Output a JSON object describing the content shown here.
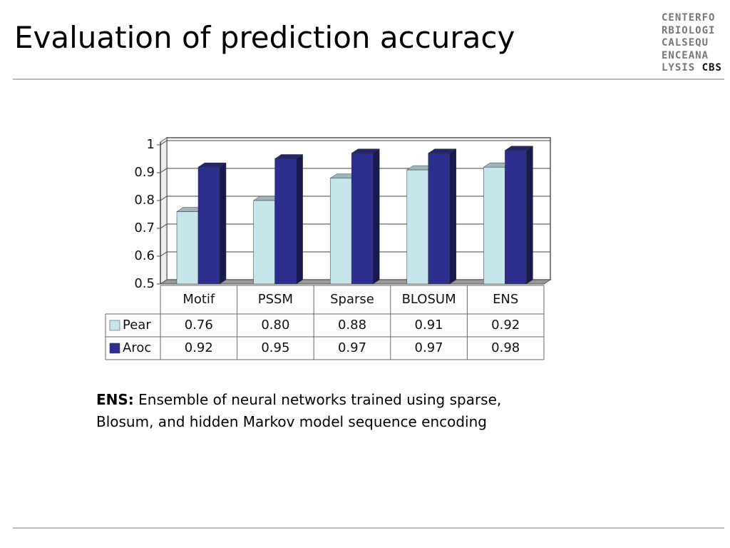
{
  "slide": {
    "title": "Evaluation of prediction accuracy",
    "logo": {
      "lines": [
        "CENTERFO",
        "RBIOLOGI",
        "CALSEQU",
        "ENCEANA",
        "LYSIS"
      ],
      "mark": "CBS"
    },
    "note": {
      "term": "ENS:",
      "lines": [
        "Ensemble of neural networks trained using sparse,",
        "Blosum, and hidden Markov model sequence encoding"
      ]
    }
  },
  "chart_data": {
    "type": "bar3d",
    "categories": [
      "Motif",
      "PSSM",
      "Sparse",
      "BLOSUM",
      "ENS"
    ],
    "series": [
      {
        "name": "Pear",
        "color": "#c4e5ea",
        "values": [
          0.76,
          0.8,
          0.88,
          0.91,
          0.92
        ],
        "value_labels": [
          "0.76",
          "0.80",
          "0.88",
          "0.91",
          "0.92"
        ]
      },
      {
        "name": "Aroc",
        "color": "#2c2f8e",
        "values": [
          0.92,
          0.95,
          0.97,
          0.97,
          0.98
        ]
      }
    ],
    "ylim": [
      0.5,
      1
    ],
    "yticks": [
      0.5,
      0.6,
      0.7,
      0.8,
      0.9,
      1
    ],
    "grid": true,
    "data_table": true
  }
}
